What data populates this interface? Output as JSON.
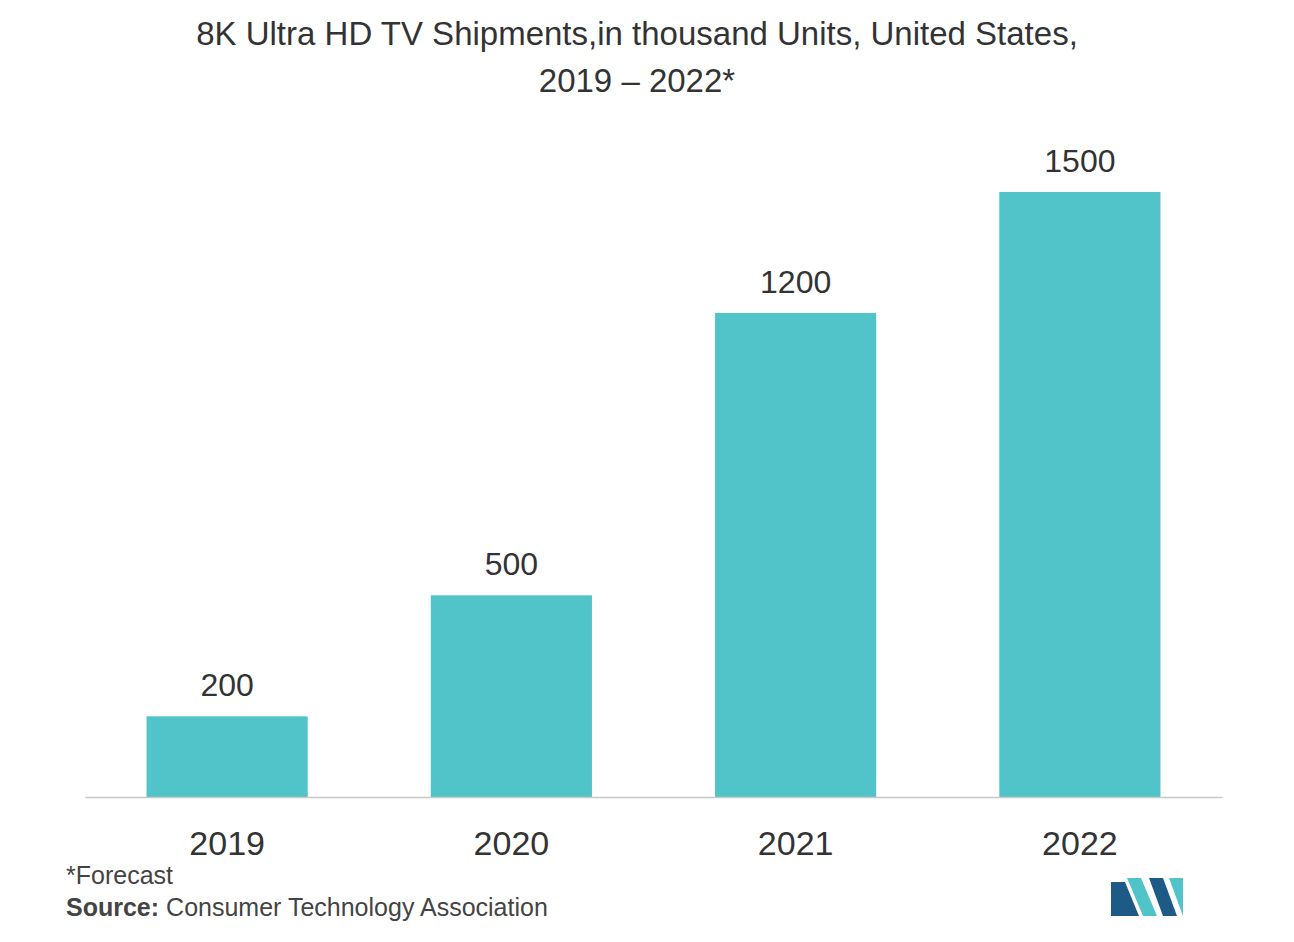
{
  "chart_data": {
    "type": "bar",
    "title": "8K Ultra HD TV Shipments,in thousand Units, United States,\n2019 – 2022*",
    "categories": [
      "2019",
      "2020",
      "2021",
      "2022"
    ],
    "values": [
      200,
      500,
      1200,
      1500
    ],
    "color": "#51c4ca",
    "ylim": [
      0,
      1500
    ],
    "data_labels": true,
    "tick_labels": "x",
    "grid": false,
    "footnote": "*Forecast",
    "source_label": "Source:",
    "source": "Consumer Technology Association"
  }
}
